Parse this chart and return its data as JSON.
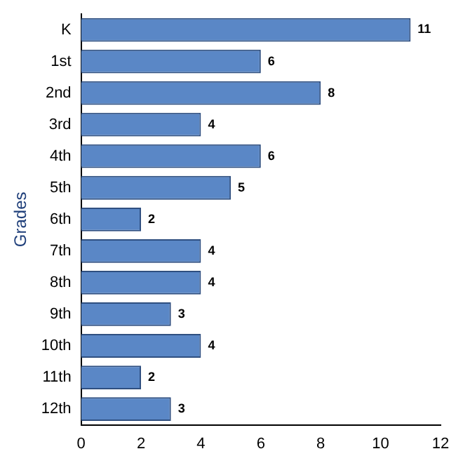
{
  "chart_data": {
    "type": "bar",
    "orientation": "horizontal",
    "ylabel": "Grades",
    "categories": [
      "K",
      "1st",
      "2nd",
      "3rd",
      "4th",
      "5th",
      "6th",
      "7th",
      "8th",
      "9th",
      "10th",
      "11th",
      "12th"
    ],
    "values": [
      11,
      6,
      8,
      4,
      6,
      5,
      2,
      4,
      4,
      3,
      4,
      2,
      3
    ],
    "color": "#5a87c6",
    "xlim": [
      0,
      12
    ],
    "xticks": [
      0,
      2,
      4,
      6,
      8,
      10,
      12
    ],
    "grid": false,
    "legend": false,
    "data_labels": true
  }
}
